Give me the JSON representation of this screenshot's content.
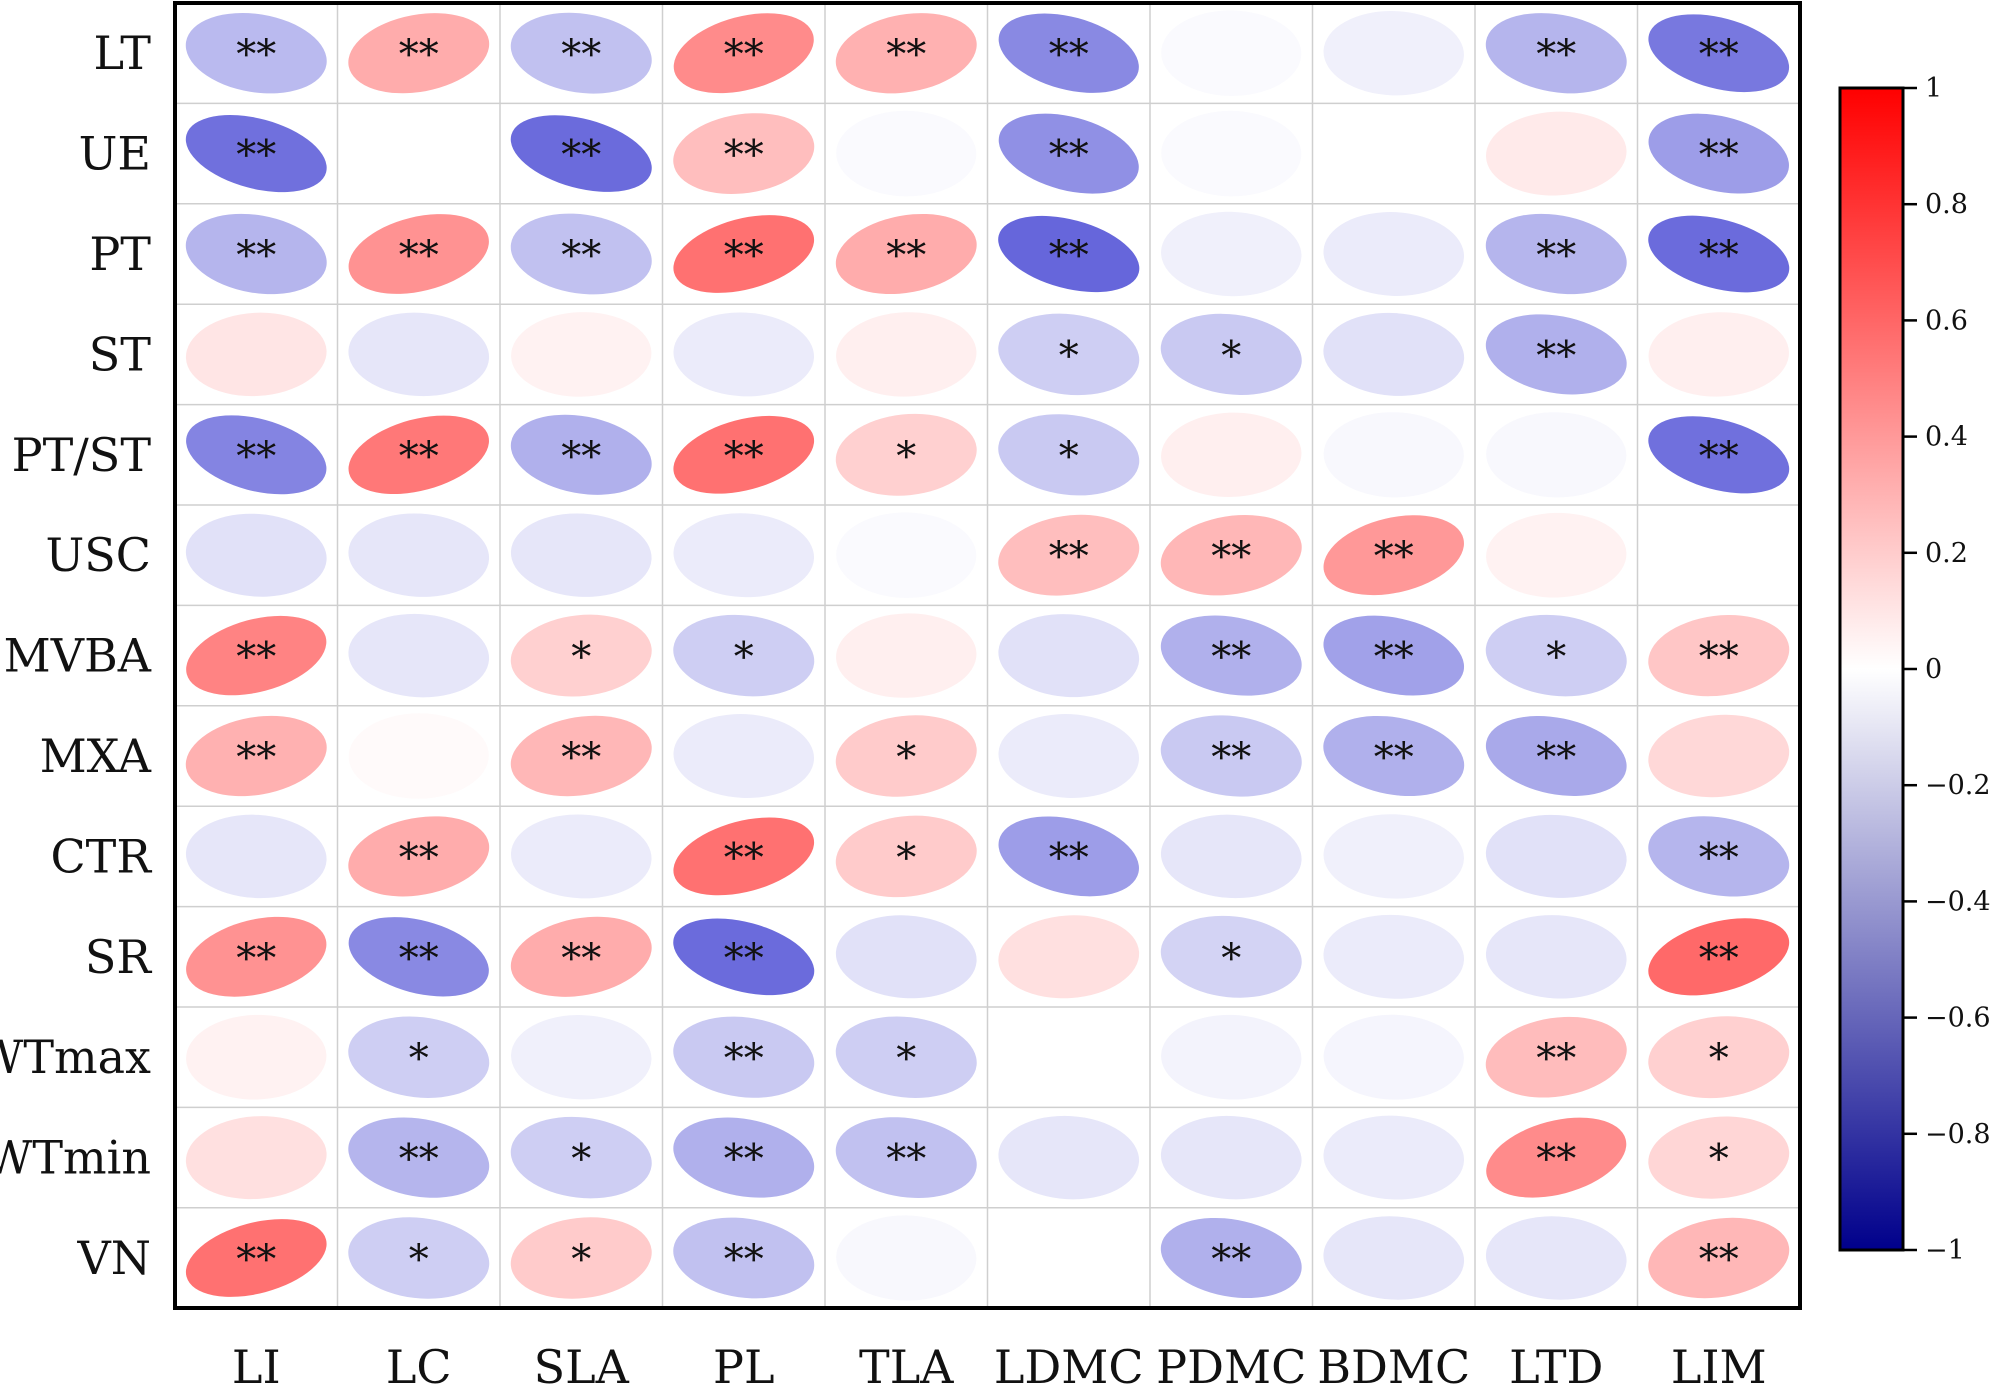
{
  "chart_data": {
    "type": "heatmap",
    "title": "",
    "rows": [
      "LT",
      "UE",
      "PT",
      "ST",
      "PT/ST",
      "USC",
      "MVBA",
      "MXA",
      "CTR",
      "SR",
      "CWTmax",
      "CWTmin",
      "VN"
    ],
    "cols": [
      "LI",
      "LC",
      "SLA",
      "PL",
      "TLA",
      "LDMC",
      "PDMC",
      "BDMC",
      "LTD",
      "LIM"
    ],
    "values": [
      [
        -0.28,
        0.32,
        -0.25,
        0.45,
        0.3,
        -0.48,
        -0.02,
        -0.06,
        -0.3,
        -0.55
      ],
      [
        -0.58,
        0.0,
        -0.6,
        0.25,
        -0.02,
        -0.45,
        -0.02,
        0.0,
        0.08,
        -0.4
      ],
      [
        -0.3,
        0.42,
        -0.25,
        0.55,
        0.32,
        -0.62,
        -0.06,
        -0.08,
        -0.3,
        -0.6
      ],
      [
        0.1,
        -0.1,
        0.05,
        -0.08,
        0.06,
        -0.2,
        -0.22,
        -0.12,
        -0.32,
        0.06
      ],
      [
        -0.5,
        0.52,
        -0.32,
        0.55,
        0.18,
        -0.22,
        0.06,
        -0.03,
        -0.03,
        -0.58
      ],
      [
        -0.12,
        -0.1,
        -0.1,
        -0.08,
        -0.02,
        0.25,
        0.28,
        0.4,
        0.05,
        0.0
      ],
      [
        0.48,
        -0.1,
        0.18,
        -0.2,
        0.06,
        -0.12,
        -0.32,
        -0.38,
        -0.2,
        0.22
      ],
      [
        0.3,
        0.02,
        0.28,
        -0.08,
        0.2,
        -0.08,
        -0.22,
        -0.32,
        -0.35,
        0.15
      ],
      [
        -0.1,
        0.32,
        -0.08,
        0.55,
        0.2,
        -0.4,
        -0.1,
        -0.06,
        -0.12,
        -0.3
      ],
      [
        0.42,
        -0.48,
        0.32,
        -0.6,
        -0.12,
        0.12,
        -0.18,
        -0.08,
        -0.1,
        0.58
      ],
      [
        0.05,
        -0.2,
        -0.06,
        -0.22,
        -0.2,
        0.0,
        -0.05,
        -0.04,
        0.26,
        0.18
      ],
      [
        0.12,
        -0.3,
        -0.2,
        -0.32,
        -0.25,
        -0.1,
        -0.1,
        -0.08,
        0.45,
        0.16
      ],
      [
        0.55,
        -0.2,
        0.2,
        -0.25,
        -0.03,
        0.0,
        -0.32,
        -0.1,
        -0.1,
        0.28
      ]
    ],
    "stars": [
      [
        "**",
        "**",
        "**",
        "**",
        "**",
        "**",
        "",
        "",
        "**",
        "**"
      ],
      [
        "**",
        "",
        "**",
        "**",
        "",
        "**",
        "",
        "",
        "",
        "**"
      ],
      [
        "**",
        "**",
        "**",
        "**",
        "**",
        "**",
        "",
        "",
        "**",
        "**"
      ],
      [
        "",
        "",
        "",
        "",
        "",
        "*",
        "*",
        "",
        "**",
        ""
      ],
      [
        "**",
        "**",
        "**",
        "**",
        "*",
        "*",
        "",
        "",
        "",
        "**"
      ],
      [
        "",
        "",
        "",
        "",
        "",
        "**",
        "**",
        "**",
        "",
        ""
      ],
      [
        "**",
        "",
        "*",
        "*",
        "",
        "",
        "**",
        "**",
        "*",
        "**"
      ],
      [
        "**",
        "",
        "**",
        "",
        "*",
        "",
        "**",
        "**",
        "**",
        ""
      ],
      [
        "",
        "**",
        "",
        "**",
        "*",
        "**",
        "",
        "",
        "",
        "**"
      ],
      [
        "**",
        "**",
        "**",
        "**",
        "",
        "",
        "*",
        "",
        "",
        "**"
      ],
      [
        "",
        "*",
        "",
        "**",
        "*",
        "",
        "",
        "",
        "**",
        "*"
      ],
      [
        "",
        "**",
        "*",
        "**",
        "**",
        "",
        "",
        "",
        "**",
        "*"
      ],
      [
        "**",
        "*",
        "*",
        "**",
        "",
        "",
        "**",
        "",
        "",
        "**"
      ]
    ],
    "colorbar": {
      "range": [
        -1,
        1
      ],
      "ticks": [
        1,
        0.8,
        0.6,
        0.4,
        0.2,
        0,
        -0.2,
        -0.4,
        -0.6,
        -0.8,
        -1
      ],
      "tick_labels": [
        "1",
        "0.8",
        "0.6",
        "0.4",
        "0.2",
        "0",
        "−0.2",
        "−0.4",
        "−0.6",
        "−0.8",
        "−1"
      ],
      "color_min": "#00008b",
      "color_low": "#3a3ad0",
      "color_mid": "#ffffff",
      "color_high": "#ff3030",
      "color_max": "#ff0000"
    }
  }
}
